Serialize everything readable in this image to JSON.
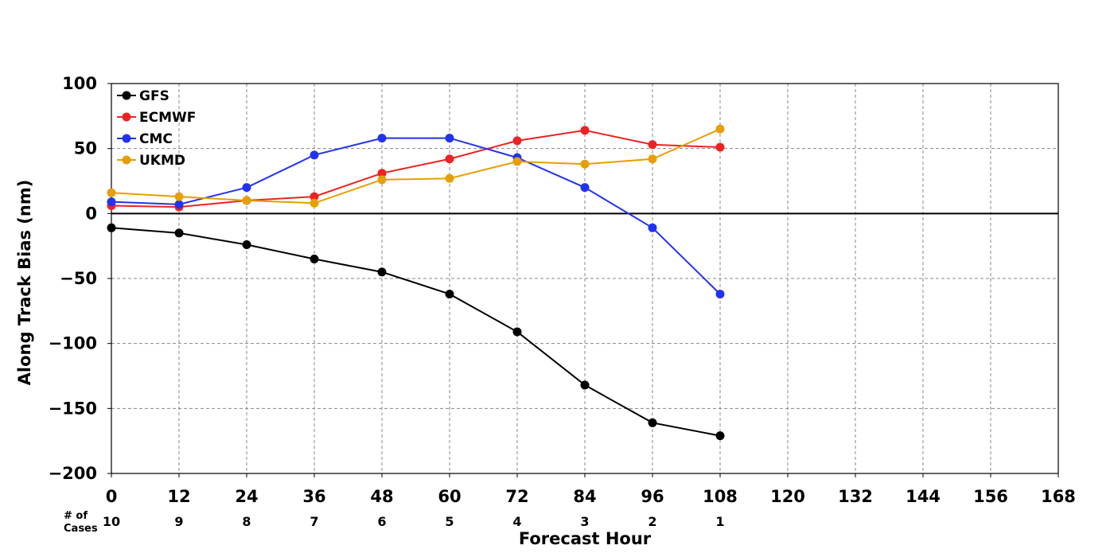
{
  "chart_data": {
    "type": "line",
    "title": "",
    "xlabel": "Forecast Hour",
    "ylabel": "Along Track Bias (nm)",
    "xlim": [
      0,
      168
    ],
    "ylim": [
      -200,
      100
    ],
    "x_ticks": [
      0,
      12,
      24,
      36,
      48,
      60,
      72,
      84,
      96,
      108,
      120,
      132,
      144,
      156,
      168
    ],
    "x_tick_labels": [
      "0",
      "12",
      "24",
      "36",
      "48",
      "60",
      "72",
      "84",
      "96",
      "108",
      "120",
      "132",
      "144",
      "156",
      "168"
    ],
    "y_ticks": [
      100,
      50,
      0,
      -50,
      -100,
      -150,
      -200
    ],
    "y_tick_labels": [
      "100",
      "50",
      "0",
      "−50",
      "−100",
      "−150",
      "−200"
    ],
    "grid": true,
    "zero_line": true,
    "legend_position": "top-left",
    "x": [
      0,
      12,
      24,
      36,
      48,
      60,
      72,
      84,
      96,
      108
    ],
    "series": [
      {
        "name": "GFS",
        "color": "#000000",
        "values": [
          -11,
          -15,
          -24,
          -35,
          -45,
          -62,
          -91,
          -132,
          -161,
          -171
        ]
      },
      {
        "name": "ECMWF",
        "color": "#ee2222",
        "values": [
          6,
          5,
          10,
          13,
          31,
          42,
          56,
          64,
          53,
          51
        ]
      },
      {
        "name": "CMC",
        "color": "#2233ee",
        "values": [
          9,
          7,
          20,
          45,
          58,
          58,
          43,
          20,
          -11,
          -62
        ]
      },
      {
        "name": "UKMD",
        "color": "#e69f00",
        "values": [
          16,
          13,
          10,
          8,
          26,
          27,
          40,
          38,
          42,
          65
        ]
      }
    ],
    "cases_label": "# of\nCases",
    "cases": [
      "10",
      "9",
      "8",
      "7",
      "6",
      "5",
      "4",
      "3",
      "2",
      "1"
    ]
  }
}
